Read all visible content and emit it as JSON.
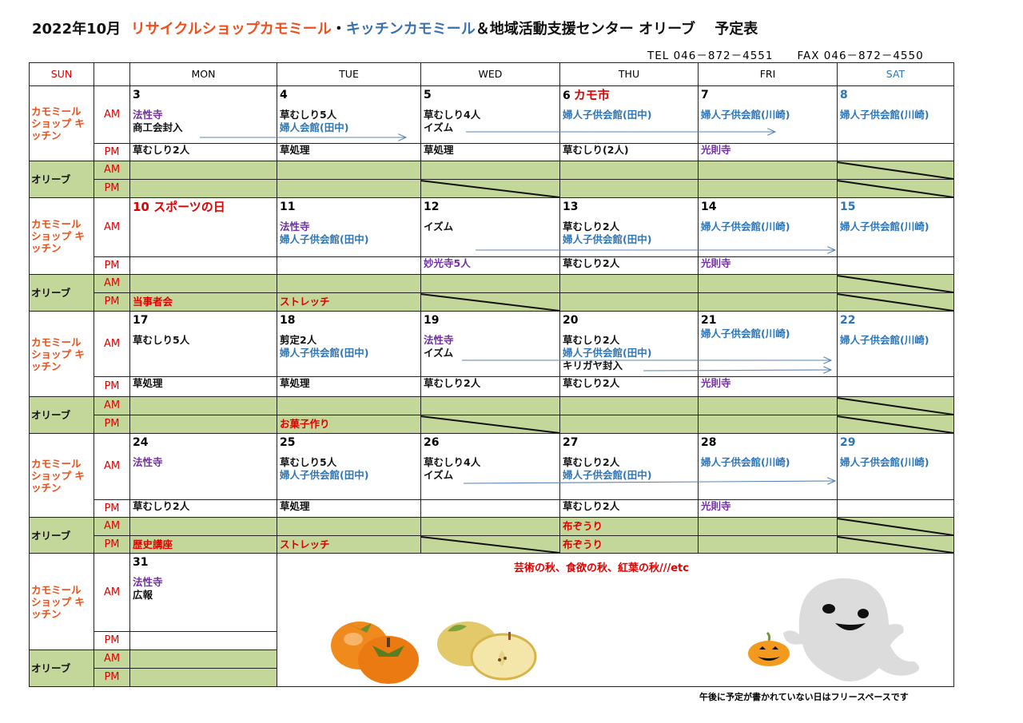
{
  "header": {
    "title_prefix": "2022年10月",
    "title_shop": "リサイクルショップカモミール",
    "title_sep": "・",
    "title_kitchen": "キッチンカモミール",
    "title_suffix": "＆地域活動支援センター オリーブ　 予定表",
    "tel": "TEL 046－872－4551",
    "fax": "FAX 046－872－4550"
  },
  "colors": {
    "black": "#111111",
    "purple": "#7030a0",
    "blue": "#2e75b6",
    "red": "#e00000",
    "olive_fill": "#c4d79b",
    "group_label": "#e8501c"
  },
  "days_header": [
    "SUN",
    "",
    "MON",
    "TUE",
    "WED",
    "THU",
    "FRI",
    "SAT"
  ],
  "labels": {
    "group_shop": "カモミール ショップ キッチン",
    "group_olive": "オリーブ",
    "am": "AM",
    "pm": "PM"
  },
  "weeks": [
    {
      "days": [
        {
          "num": "3",
          "am": [
            {
              "t": "法性寺",
              "c": "purple"
            },
            {
              "t": "商工会封入",
              "c": "black"
            }
          ],
          "pm": [
            {
              "t": "草むしり2人",
              "c": "black"
            }
          ],
          "oam": [],
          "opm": []
        },
        {
          "num": "4",
          "am": [
            {
              "t": "草むしり5人",
              "c": "black"
            },
            {
              "t": "婦人会館(田中)",
              "c": "blue"
            }
          ],
          "pm": [
            {
              "t": "草処理",
              "c": "black"
            }
          ],
          "oam": [],
          "opm": []
        },
        {
          "num": "5",
          "am": [
            {
              "t": "草むしり4人",
              "c": "black"
            },
            {
              "t": "イズム",
              "c": "black"
            }
          ],
          "pm": [
            {
              "t": "草処理",
              "c": "black"
            }
          ],
          "oam": [],
          "opm": []
        },
        {
          "num": "6",
          "label": "カモ市",
          "am": [
            {
              "t": "婦人子供会館(田中)",
              "c": "blue"
            }
          ],
          "pm": [
            {
              "t": "草むしり(2人)",
              "c": "black"
            }
          ],
          "oam": [],
          "opm": []
        },
        {
          "num": "7",
          "am": [
            {
              "t": "婦人子供会館(川崎)",
              "c": "blue"
            }
          ],
          "pm": [
            {
              "t": "光則寺",
              "c": "purple"
            }
          ],
          "oam": [],
          "opm": []
        },
        {
          "num": "8",
          "am": [
            {
              "t": "婦人子供会館(川崎)",
              "c": "blue"
            }
          ],
          "pm": [],
          "oam": [],
          "opm": []
        }
      ]
    },
    {
      "days": [
        {
          "num": "10 スポーツの日",
          "holiday": true,
          "am": [],
          "pm": [],
          "oam": [],
          "opm": [
            {
              "t": "当事者会",
              "c": "red"
            }
          ]
        },
        {
          "num": "11",
          "am": [
            {
              "t": "法性寺",
              "c": "purple"
            },
            {
              "t": "婦人子供会館(田中)",
              "c": "blue"
            }
          ],
          "pm": [],
          "oam": [],
          "opm": [
            {
              "t": "ストレッチ",
              "c": "red"
            }
          ]
        },
        {
          "num": "12",
          "am": [
            {
              "t": "",
              "c": "black"
            },
            {
              "t": "イズム",
              "c": "black"
            }
          ],
          "pm": [
            {
              "t": "妙光寺5人",
              "c": "purple"
            }
          ],
          "oam": [],
          "opm": []
        },
        {
          "num": "13",
          "am": [
            {
              "t": "草むしり2人",
              "c": "black"
            },
            {
              "t": "婦人子供会館(田中)",
              "c": "blue"
            }
          ],
          "pm": [
            {
              "t": "草むしり2人",
              "c": "black"
            }
          ],
          "oam": [],
          "opm": []
        },
        {
          "num": "14",
          "am": [
            {
              "t": "婦人子供会館(川崎)",
              "c": "blue"
            }
          ],
          "pm": [
            {
              "t": "光則寺",
              "c": "purple"
            }
          ],
          "oam": [],
          "opm": []
        },
        {
          "num": "15",
          "am": [
            {
              "t": "婦人子供会館(川崎)",
              "c": "blue"
            }
          ],
          "pm": [],
          "oam": [],
          "opm": []
        }
      ]
    },
    {
      "days": [
        {
          "num": "17",
          "am": [
            {
              "t": "草むしり5人",
              "c": "black"
            }
          ],
          "pm": [
            {
              "t": "草処理",
              "c": "black"
            }
          ],
          "oam": [],
          "opm": []
        },
        {
          "num": "18",
          "am": [
            {
              "t": "剪定2人",
              "c": "black"
            },
            {
              "t": "婦人子供会館(田中)",
              "c": "blue"
            }
          ],
          "pm": [
            {
              "t": "草処理",
              "c": "black"
            }
          ],
          "oam": [],
          "opm": [
            {
              "t": "お菓子作り",
              "c": "red"
            }
          ]
        },
        {
          "num": "19",
          "am": [
            {
              "t": "法性寺",
              "c": "purple"
            },
            {
              "t": "イズム",
              "c": "black"
            }
          ],
          "pm": [
            {
              "t": "草むしり2人",
              "c": "black"
            }
          ],
          "oam": [],
          "opm": []
        },
        {
          "num": "20",
          "am": [
            {
              "t": "草むしり2人",
              "c": "black"
            },
            {
              "t": "婦人子供会館(田中)",
              "c": "blue"
            },
            {
              "t": "キリガヤ封入",
              "c": "black"
            }
          ],
          "pm": [
            {
              "t": "草むしり2人",
              "c": "black"
            }
          ],
          "oam": [],
          "opm": []
        },
        {
          "num": "21",
          "am": [
            {
              "t": "婦人子供会館(川崎)",
              "c": "blue"
            }
          ],
          "pm": [
            {
              "t": "光則寺",
              "c": "purple"
            }
          ],
          "oam": [],
          "opm": []
        },
        {
          "num": "22",
          "am": [
            {
              "t": "婦人子供会館(川崎)",
              "c": "blue"
            }
          ],
          "pm": [],
          "oam": [],
          "opm": []
        }
      ]
    },
    {
      "days": [
        {
          "num": "24",
          "am": [
            {
              "t": "法性寺",
              "c": "purple"
            }
          ],
          "pm": [
            {
              "t": "草むしり2人",
              "c": "black"
            }
          ],
          "oam": [],
          "opm": [
            {
              "t": "歴史講座",
              "c": "red"
            }
          ]
        },
        {
          "num": "25",
          "am": [
            {
              "t": "草むしり5人",
              "c": "black"
            },
            {
              "t": "婦人子供会館(田中)",
              "c": "blue"
            }
          ],
          "pm": [
            {
              "t": "草処理",
              "c": "black"
            }
          ],
          "oam": [],
          "opm": [
            {
              "t": "ストレッチ",
              "c": "red"
            }
          ]
        },
        {
          "num": "26",
          "am": [
            {
              "t": "草むしり4人",
              "c": "black"
            },
            {
              "t": "イズム",
              "c": "black"
            }
          ],
          "pm": [],
          "oam": [],
          "opm": []
        },
        {
          "num": "27",
          "am": [
            {
              "t": "草むしり2人",
              "c": "black"
            },
            {
              "t": "婦人子供会館(田中)",
              "c": "blue"
            }
          ],
          "pm": [
            {
              "t": "草むしり2人",
              "c": "black"
            }
          ],
          "oam": [
            {
              "t": "布ぞうり",
              "c": "red"
            }
          ],
          "opm": [
            {
              "t": "布ぞうり",
              "c": "red"
            }
          ]
        },
        {
          "num": "28",
          "am": [
            {
              "t": "婦人子供会館(川崎)",
              "c": "blue"
            }
          ],
          "pm": [
            {
              "t": "光則寺",
              "c": "purple"
            }
          ],
          "oam": [],
          "opm": []
        },
        {
          "num": "29",
          "am": [
            {
              "t": "婦人子供会館(川崎)",
              "c": "blue"
            }
          ],
          "pm": [],
          "oam": [],
          "opm": []
        }
      ]
    },
    {
      "days": [
        {
          "num": "31",
          "am": [
            {
              "t": "法性寺",
              "c": "purple"
            },
            {
              "t": "広報",
              "c": "black"
            }
          ],
          "pm": [],
          "oam": [],
          "opm": []
        }
      ]
    }
  ],
  "note": "芸術の秋、食欲の秋、紅葉の秋///etc",
  "footer": "午後に予定が書かれていない日はフリースペースです",
  "illustrations": [
    "persimmon",
    "pear",
    "pumpkin",
    "ghost"
  ]
}
